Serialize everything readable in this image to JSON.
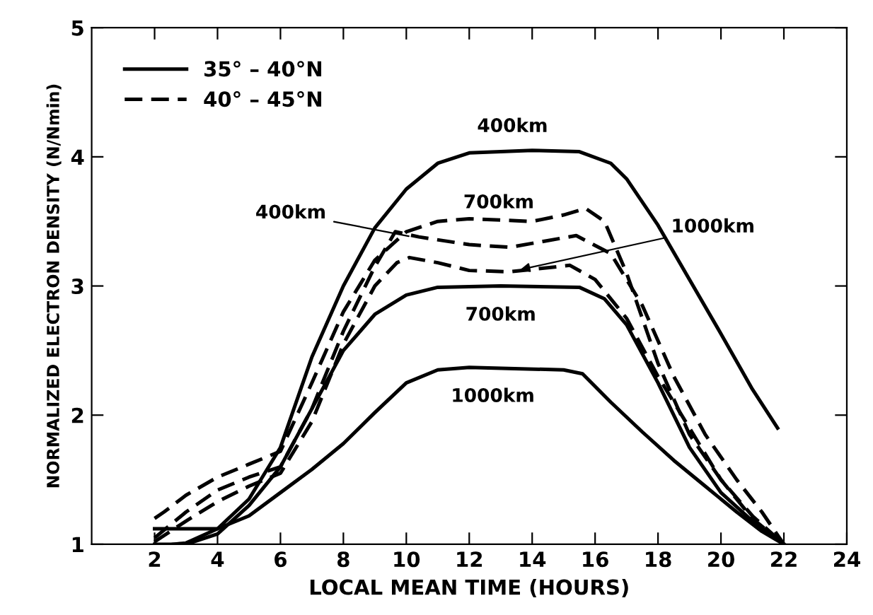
{
  "chart_data": {
    "type": "line",
    "xlabel": "LOCAL MEAN TIME (HOURS)",
    "ylabel": "NORMALIZED ELECTRON DENSITY (N/Nmin)",
    "xlim": [
      0,
      24
    ],
    "xticks": [
      2,
      4,
      6,
      8,
      10,
      12,
      14,
      16,
      18,
      20,
      22,
      24
    ],
    "ylim": [
      1,
      5
    ],
    "yticks": [
      1,
      2,
      3,
      4,
      5
    ],
    "grid": false,
    "legend": "top left",
    "marker": "none",
    "series": [
      {
        "name": "35° – 40°N",
        "color": "#000000",
        "line_style": "solid",
        "x": [
          2,
          3,
          4,
          5,
          6,
          7,
          8,
          9,
          10,
          11,
          12,
          14,
          15.5,
          16.5,
          17,
          18,
          19,
          20,
          21,
          21.8
        ],
        "values": [
          1.12,
          1.12,
          1.12,
          1.35,
          1.75,
          2.45,
          3.0,
          3.45,
          3.75,
          3.95,
          4.03,
          4.05,
          4.04,
          3.95,
          3.83,
          3.47,
          3.05,
          2.63,
          2.2,
          1.9
        ]
      },
      {
        "color": "#000000",
        "line_style": "solid",
        "x": [
          2,
          3,
          4,
          5,
          6,
          7,
          8,
          9,
          10,
          11,
          13,
          15.5,
          16.3,
          17,
          18,
          19,
          20,
          21,
          22
        ],
        "values": [
          1.0,
          1.0,
          1.08,
          1.3,
          1.6,
          2.05,
          2.5,
          2.78,
          2.93,
          2.99,
          3.0,
          2.99,
          2.9,
          2.7,
          2.25,
          1.75,
          1.4,
          1.18,
          1.0
        ]
      },
      {
        "color": "#000000",
        "line_style": "solid",
        "x": [
          2.6,
          3,
          4,
          5,
          6,
          7,
          8,
          9,
          10,
          11,
          12,
          15,
          15.6,
          16.5,
          17.5,
          18.5,
          19.5,
          20.5,
          21.3,
          22
        ],
        "values": [
          1.0,
          1.01,
          1.12,
          1.22,
          1.4,
          1.58,
          1.78,
          2.02,
          2.25,
          2.35,
          2.37,
          2.35,
          2.32,
          2.1,
          1.87,
          1.65,
          1.45,
          1.25,
          1.1,
          1.0
        ]
      },
      {
        "name": "40° – 45°N",
        "color": "#000000",
        "line_style": "dashed",
        "x": [
          2,
          2.3,
          3,
          4,
          5,
          6,
          7,
          8,
          9,
          10,
          11,
          12,
          14,
          15,
          15.7,
          16.3,
          17,
          18,
          19,
          20,
          21,
          22
        ],
        "values": [
          1.2,
          1.25,
          1.38,
          1.52,
          1.62,
          1.72,
          2.25,
          2.8,
          3.2,
          3.42,
          3.5,
          3.52,
          3.5,
          3.55,
          3.6,
          3.5,
          3.1,
          2.4,
          1.85,
          1.5,
          1.22,
          1.0
        ]
      },
      {
        "color": "#000000",
        "line_style": "dashed",
        "x": [
          2,
          3,
          4,
          5,
          6,
          7,
          8,
          9,
          9.65,
          10.4,
          12,
          13.3,
          15.4,
          16.5,
          17.5,
          18.5,
          19.5,
          20.5,
          21.3,
          22
        ],
        "values": [
          1.05,
          1.25,
          1.42,
          1.52,
          1.6,
          2.05,
          2.65,
          3.15,
          3.42,
          3.38,
          3.32,
          3.3,
          3.39,
          3.25,
          2.85,
          2.3,
          1.85,
          1.5,
          1.25,
          1.0
        ]
      },
      {
        "color": "#000000",
        "line_style": "dashed",
        "x": [
          2,
          3,
          4,
          5,
          6,
          7,
          8,
          9,
          9.7,
          10.1,
          11,
          12,
          13.3,
          15.2,
          16,
          17,
          18,
          19,
          20,
          21,
          22
        ],
        "values": [
          1.02,
          1.18,
          1.33,
          1.45,
          1.55,
          1.95,
          2.55,
          3.0,
          3.18,
          3.22,
          3.18,
          3.12,
          3.11,
          3.16,
          3.05,
          2.75,
          2.3,
          1.9,
          1.5,
          1.2,
          1.0
        ]
      }
    ],
    "annotations": [
      {
        "text": "400km",
        "x": 14,
        "y": 4.05
      },
      {
        "text": "700km",
        "x": 12,
        "y": 3.52
      },
      {
        "text": "400km",
        "x": 10.2,
        "y": 3.38
      },
      {
        "text": "700km",
        "x": 13,
        "y": 3.0
      },
      {
        "text": "1000km",
        "x": 13.5,
        "y": 3.12
      },
      {
        "text": "1000km",
        "x": 12,
        "y": 2.37
      }
    ]
  }
}
